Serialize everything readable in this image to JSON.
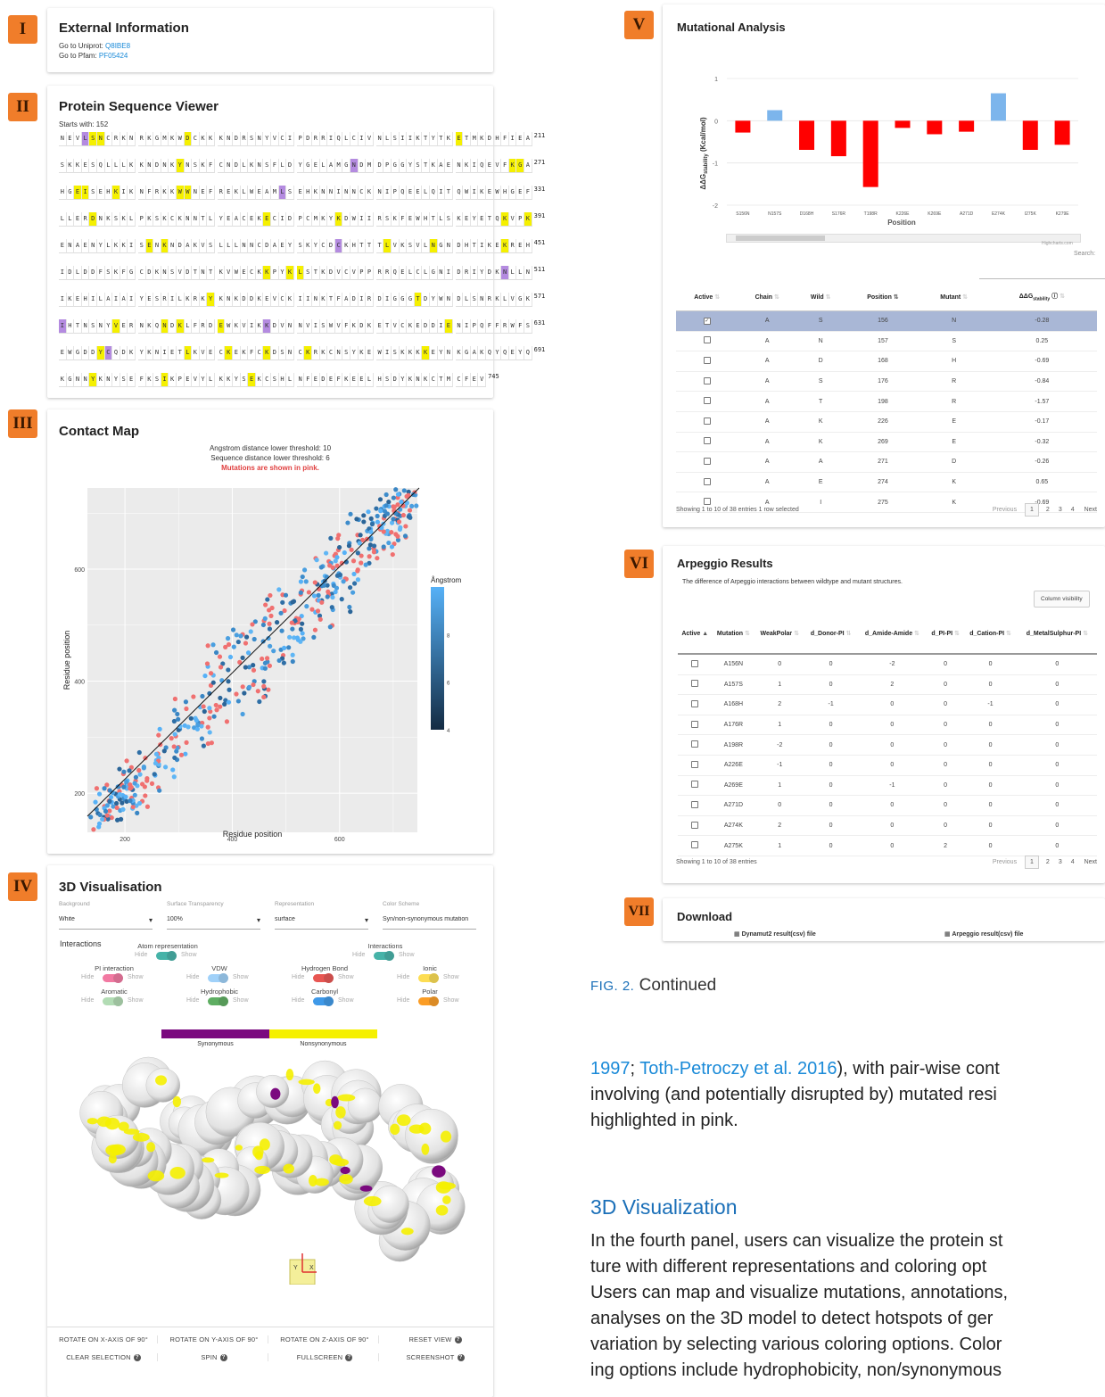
{
  "panels": {
    "I": {
      "badge": "I",
      "title": "External Information",
      "uniprot_label": "Go to Uniprot: ",
      "uniprot_id": "Q8IBE8",
      "pfam_label": "Go to Pfam: ",
      "pfam_id": "PF05424"
    },
    "II": {
      "badge": "II",
      "title": "Protein Sequence Viewer",
      "starts_with": "Starts with: 152",
      "rows": [
        {
          "seq": "NEVLSNCRKN RKGMKWDCKK KNDRSNYVCI PDRRIQLCIV NLSIIKTYTK ETMKDHFIEA",
          "hl": {
            "3": "p",
            "4": "y",
            "5": "y",
            "16": "y",
            "50": "y"
          },
          "end": "211"
        },
        {
          "seq": "SKKESQLLLK KNDNKYNSKF CNDLKNSFLD YGELAMGNDM DPGGYSTKAE NKIQEVFKGA",
          "hl": {
            "15": "y",
            "37": "p",
            "57": "y",
            "58": "y"
          },
          "end": "271"
        },
        {
          "seq": "HGEISEHKIK NFRKKWWNEF REKLWEAMLS EHKNNINNCK NIPQEELQIT QWIKEWHGEF",
          "hl": {
            "2": "y",
            "3": "y",
            "7": "y",
            "15": "y",
            "16": "y",
            "28": "p"
          },
          "end": "331"
        },
        {
          "seq": "LLERDNKSKL PKSKCKNNTL YEACEKECID PCMKYKDWII RSKFEWHTLS KEYETQKVPK",
          "hl": {
            "4": "y",
            "26": "y",
            "35": "y",
            "56": "y",
            "59": "y"
          },
          "end": "391"
        },
        {
          "seq": "ENAENYLKKI SENKNDAKVS LLLNNCDAEY SKYCDCKHTT TLVKSVLNGN DHTIKEKREH",
          "hl": {
            "11": "y",
            "13": "y",
            "35": "p",
            "41": "y",
            "47": "y",
            "56": "y"
          },
          "end": "451"
        },
        {
          "seq": "IDLDDFSKFG CDKNSVDTNT KVWECKKPYK LSTKDVCVPP RRQELCLGNI DRIYDKNLLN",
          "hl": {
            "26": "y",
            "29": "y",
            "30": "y",
            "56": "p"
          },
          "end": "511"
        },
        {
          "seq": "IKEHILAIAI YESRILKRKY KNKDDKEVCK IINKTFADIR DIGGGTDYWN DLSNRKLVGK",
          "hl": {
            "19": "y",
            "45": "y"
          },
          "end": "571"
        },
        {
          "seq": "IHTNSNYVER NKQNDKLFRD EWKVIKKDVN NVISWVFKDK ETVCKEDDIE NIPQFFRWFS",
          "hl": {
            "0": "p",
            "7": "y",
            "13": "y",
            "15": "y",
            "20": "y",
            "26": "p",
            "49": "y"
          },
          "end": "631"
        },
        {
          "seq": "EWGDDYCQDK YKNIETLKVE CKEKFCKDSN CKRKCNSYKE WISKKKKEYN KGAKQYQEYQ",
          "hl": {
            "5": "y",
            "6": "p",
            "16": "y",
            "21": "y",
            "26": "y",
            "31": "y",
            "46": "y"
          },
          "end": "691"
        },
        {
          "seq": "KGNNYKNYSE FKSIKPEVYL KKYSEKCSHL NFEDEFKEEL HSDYKNKCTM CFEV",
          "hl": {
            "4": "y",
            "13": "y",
            "24": "y"
          },
          "end": "745"
        }
      ]
    },
    "III": {
      "badge": "III",
      "title": "Contact Map",
      "line1": "Angstrom distance lower threshold: 10",
      "line2": "Sequence distance lower threshold: 6",
      "line3": "Mutations are shown in pink.",
      "xlabel": "Residue position",
      "ylabel": "Residue position",
      "xticks": [
        "200",
        "400",
        "600"
      ],
      "yticks": [
        "200",
        "400",
        "600"
      ],
      "legend_title": "Ångstrom",
      "legend_ticks": [
        "8",
        "6",
        "4"
      ]
    },
    "IV": {
      "badge": "IV",
      "title": "3D Visualisation",
      "selects": [
        {
          "label": "Background",
          "value": "White"
        },
        {
          "label": "Surface Transparency",
          "value": "100%"
        },
        {
          "label": "Representation",
          "value": "surface"
        },
        {
          "label": "Color Scheme",
          "value": "Syn/non-synonymous mutation"
        }
      ],
      "interactions": "Interactions",
      "toggles": [
        {
          "label": "Atom representation",
          "hide": "Hide",
          "show": "Show"
        },
        {
          "label": "Interactions",
          "hide": "Hide",
          "show": "Show"
        },
        {
          "label": "PI interaction",
          "hide": "Hide",
          "show": "Show"
        },
        {
          "label": "VDW",
          "hide": "Hide",
          "show": "Show"
        },
        {
          "label": "Hydrogen Bond",
          "hide": "Hide",
          "show": "Show"
        },
        {
          "label": "Ionic",
          "hide": "Hide",
          "show": "Show"
        },
        {
          "label": "Aromatic",
          "hide": "Hide",
          "show": "Show"
        },
        {
          "label": "Hydrophobic",
          "hide": "Hide",
          "show": "Show"
        },
        {
          "label": "Carbonyl",
          "hide": "Hide",
          "show": "Show"
        },
        {
          "label": "Polar",
          "hide": "Hide",
          "show": "Show"
        }
      ],
      "legend": {
        "syn": "Synonymous",
        "nonsyn": "Nonsynonymous",
        "syn_color": "#7b0a7f",
        "nonsyn_color": "#f5f000"
      },
      "axes_x": "X",
      "axes_y": "Y",
      "buttons": [
        "ROTATE ON X-AXIS OF 90°",
        "ROTATE ON Y-AXIS OF 90°",
        "ROTATE ON Z-AXIS OF 90°",
        "RESET VIEW",
        "CLEAR SELECTION",
        "SPIN",
        "FULLSCREEN",
        "SCREENSHOT"
      ]
    },
    "V": {
      "badge": "V",
      "title": "Mutational Analysis",
      "ylabel_pre": "ΔΔG",
      "ylabel_sub": "stability",
      "ylabel_post": " (Kcal/mol)",
      "xlabel": "Position",
      "credit": "Highcharts.com",
      "search": "Search:",
      "headers": [
        "Active",
        "Chain",
        "Wild",
        "Position",
        "Mutant",
        "ΔΔG"
      ],
      "ddg_sub": "stability",
      "rows": [
        [
          "A",
          "S",
          "156",
          "N",
          "-0.28"
        ],
        [
          "A",
          "N",
          "157",
          "S",
          "0.25"
        ],
        [
          "A",
          "D",
          "168",
          "H",
          "-0.69"
        ],
        [
          "A",
          "S",
          "176",
          "R",
          "-0.84"
        ],
        [
          "A",
          "T",
          "198",
          "R",
          "-1.57"
        ],
        [
          "A",
          "K",
          "226",
          "E",
          "-0.17"
        ],
        [
          "A",
          "K",
          "269",
          "E",
          "-0.32"
        ],
        [
          "A",
          "A",
          "271",
          "D",
          "-0.26"
        ],
        [
          "A",
          "E",
          "274",
          "K",
          "0.65"
        ],
        [
          "A",
          "I",
          "275",
          "K",
          "-0.69"
        ]
      ],
      "footer": "Showing 1 to 10 of 38 entries    1 row selected",
      "prev": "Previous",
      "pages": [
        "1",
        "2",
        "3",
        "4"
      ],
      "next": "Next"
    },
    "VI": {
      "badge": "VI",
      "title": "Arpeggio Results",
      "subtitle": "The difference of Arpeggio interactions between wildtype and mutant structures.",
      "colvis": "Column visibility",
      "headers": [
        "Active",
        "Mutation",
        "WeakPolar",
        "d_Donor-PI",
        "d_Amide-Amide",
        "d_PI-PI",
        "d_Cation-PI",
        "d_MetalSulphur-PI"
      ],
      "rows": [
        [
          "A156N",
          "0",
          "0",
          "-2",
          "0",
          "0",
          "0"
        ],
        [
          "A157S",
          "1",
          "0",
          "2",
          "0",
          "0",
          "0"
        ],
        [
          "A168H",
          "2",
          "-1",
          "0",
          "0",
          "-1",
          "0"
        ],
        [
          "A176R",
          "1",
          "0",
          "0",
          "0",
          "0",
          "0"
        ],
        [
          "A198R",
          "-2",
          "0",
          "0",
          "0",
          "0",
          "0"
        ],
        [
          "A226E",
          "-1",
          "0",
          "0",
          "0",
          "0",
          "0"
        ],
        [
          "A269E",
          "1",
          "0",
          "-1",
          "0",
          "0",
          "0"
        ],
        [
          "A271D",
          "0",
          "0",
          "0",
          "0",
          "0",
          "0"
        ],
        [
          "A274K",
          "2",
          "0",
          "0",
          "0",
          "0",
          "0"
        ],
        [
          "A275K",
          "1",
          "0",
          "0",
          "2",
          "0",
          "0"
        ]
      ],
      "footer": "Showing 1 to 10 of 38 entries",
      "prev": "Previous",
      "pages": [
        "1",
        "2",
        "3",
        "4"
      ],
      "next": "Next"
    },
    "VII": {
      "badge": "VII",
      "title": "Download",
      "file1": "Dynamut2 result(csv) file",
      "file2": "Arpeggio result(csv) file"
    }
  },
  "caption": {
    "fig": "FIG. 2.",
    "text": " Continued"
  },
  "body": {
    "p1_a": "1997",
    "p1_sep": "; ",
    "p1_b": "Toth-Petroczy et al. 2016",
    "p1_c": "), with pair-wise cont",
    "p1_l2": "involving (and potentially disrupted by) mutated resi",
    "p1_l3": "highlighted in pink.",
    "heading": "3D Visualization",
    "p2_l1": "In the fourth panel, users can visualize the protein st",
    "p2_l2": "ture with different representations and coloring opt",
    "p2_l3": "Users can map and visualize mutations, annotations,",
    "p2_l4": "analyses on the 3D model to detect hotspots of ger",
    "p2_l5": "variation by selecting various coloring options. Color",
    "p2_l6": "ing options include hydrophobicity, non/synonymous"
  },
  "chart_data": [
    {
      "type": "bar",
      "title": "Mutational Analysis",
      "xlabel": "Position",
      "ylabel": "ΔΔGstability (Kcal/mol)",
      "ylim": [
        -2,
        1
      ],
      "categories": [
        "S156N",
        "N157S",
        "D168H",
        "S176R",
        "T198R",
        "K226E",
        "K269E",
        "A271D",
        "E274K",
        "I275K",
        "K279E"
      ],
      "values": [
        -0.28,
        0.25,
        -0.69,
        -0.84,
        -1.57,
        -0.17,
        -0.32,
        -0.26,
        0.65,
        -0.69,
        -0.57
      ],
      "colors": {
        "positive": "#7cb5ec",
        "negative": "#ff0000"
      }
    },
    {
      "type": "scatter",
      "title": "Contact Map",
      "xlabel": "Residue position",
      "ylabel": "Residue position",
      "xlim": [
        130,
        745
      ],
      "ylim": [
        130,
        745
      ],
      "legend": "right",
      "legend_title": "Ångstrom",
      "color_range": [
        4,
        10
      ],
      "mutation_color": "#f07070"
    }
  ]
}
